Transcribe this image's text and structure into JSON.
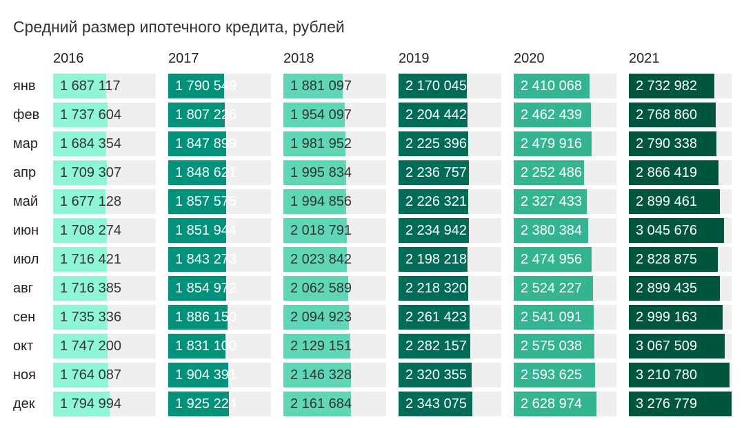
{
  "chart_data": {
    "type": "table",
    "title": "Средний размер ипотечного кредита, рублей",
    "years": [
      "2016",
      "2017",
      "2018",
      "2019",
      "2020",
      "2021"
    ],
    "months": [
      "янв",
      "фев",
      "мар",
      "апр",
      "май",
      "июн",
      "июл",
      "авг",
      "сен",
      "окт",
      "ноя",
      "дек"
    ],
    "max_value": 3276779,
    "series": [
      {
        "year": "2016",
        "color": "#8ef5d6",
        "text_color": "#333333",
        "values": [
          1687117,
          1737604,
          1684354,
          1709307,
          1677128,
          1708274,
          1716421,
          1716385,
          1735336,
          1747200,
          1764087,
          1794994
        ],
        "labels": [
          "1 687 117",
          "1 737 604",
          "1 684 354",
          "1 709 307",
          "1 677 128",
          "1 708 274",
          "1 716 421",
          "1 716 385",
          "1 735 336",
          "1 747 200",
          "1 764 087",
          "1 794 994"
        ]
      },
      {
        "year": "2017",
        "color": "#00927a",
        "text_color": "#ffffff",
        "values": [
          1790549,
          1807226,
          1847899,
          1848621,
          1857575,
          1851944,
          1843273,
          1854972,
          1886150,
          1831100,
          1904391,
          1925224
        ],
        "labels": [
          "1 790 549",
          "1 807 226",
          "1 847 899",
          "1 848 621",
          "1 857 575",
          "1 851 944",
          "1 843 273",
          "1 854 972",
          "1 886 150",
          "1 831 100",
          "1 904 391",
          "1 925 224"
        ]
      },
      {
        "year": "2018",
        "color": "#5fd6b6",
        "text_color": "#333333",
        "values": [
          1881097,
          1954097,
          1981952,
          1995834,
          1994856,
          2018791,
          2023842,
          2062589,
          2094923,
          2129151,
          2146328,
          2161684
        ],
        "labels": [
          "1 881 097",
          "1 954 097",
          "1 981 952",
          "1 995 834",
          "1 994 856",
          "2 018 791",
          "2 023 842",
          "2 062 589",
          "2 094 923",
          "2 129 151",
          "2 146 328",
          "2 161 684"
        ]
      },
      {
        "year": "2019",
        "color": "#006c57",
        "text_color": "#ffffff",
        "values": [
          2170045,
          2204442,
          2225396,
          2236757,
          2226321,
          2234942,
          2198218,
          2218320,
          2261423,
          2282157,
          2320355,
          2343075
        ],
        "labels": [
          "2 170 045",
          "2 204 442",
          "2 225 396",
          "2 236 757",
          "2 226 321",
          "2 234 942",
          "2 198 218",
          "2 218 320",
          "2 261 423",
          "2 282 157",
          "2 320 355",
          "2 343 075"
        ]
      },
      {
        "year": "2020",
        "color": "#34b491",
        "text_color": "#ffffff",
        "values": [
          2410068,
          2462439,
          2479916,
          2252486,
          2327433,
          2380384,
          2474956,
          2524227,
          2541091,
          2575038,
          2593625,
          2628974
        ],
        "labels": [
          "2 410 068",
          "2 462 439",
          "2 479 916",
          "2 252 486",
          "2 327 433",
          "2 380 384",
          "2 474 956",
          "2 524 227",
          "2 541 091",
          "2 575 038",
          "2 593 625",
          "2 628 974"
        ]
      },
      {
        "year": "2021",
        "color": "#00553f",
        "text_color": "#ffffff",
        "values": [
          2732982,
          2768860,
          2790338,
          2866419,
          2899461,
          3045676,
          2828875,
          2899435,
          2999163,
          3067509,
          3210780,
          3276779
        ],
        "labels": [
          "2 732 982",
          "2 768 860",
          "2 790 338",
          "2 866 419",
          "2 899 461",
          "3 045 676",
          "2 828 875",
          "2 899 435",
          "2 999 163",
          "3 067 509",
          "3 210 780",
          "3 276 779"
        ]
      }
    ]
  }
}
